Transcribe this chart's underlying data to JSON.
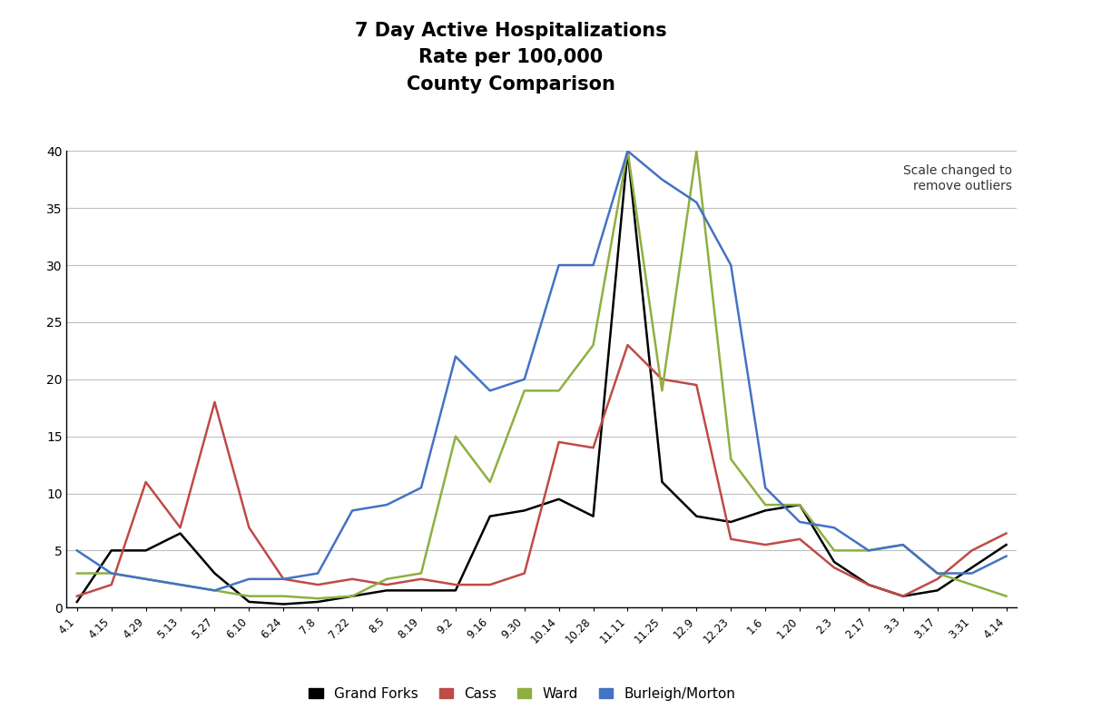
{
  "title": "7 Day Active Hospitalizations\nRate per 100,000\nCounty Comparison",
  "x_labels": [
    "4.1",
    "4.15",
    "4.29",
    "5.13",
    "5.27",
    "6.10",
    "6.24",
    "7.8",
    "7.22",
    "8.5",
    "8.19",
    "9.2",
    "9.16",
    "9.30",
    "10.14",
    "10.28",
    "11.11",
    "11.25",
    "12.9",
    "12.23",
    "1.6",
    "1.20",
    "2.3",
    "2.17",
    "3.3",
    "3.17",
    "3.31",
    "4.14"
  ],
  "ylim": [
    0,
    40
  ],
  "yticks": [
    0,
    5,
    10,
    15,
    20,
    25,
    30,
    35,
    40
  ],
  "annotation": "Scale changed to\nremove outliers",
  "grand_forks": [
    0.5,
    5.0,
    5.0,
    6.5,
    3.0,
    0.5,
    0.3,
    0.5,
    1.0,
    1.5,
    1.5,
    1.5,
    8.0,
    8.5,
    9.5,
    8.0,
    40.0,
    11.0,
    8.0,
    7.5,
    8.5,
    9.0,
    4.0,
    2.0,
    1.0,
    1.5,
    3.5,
    5.5
  ],
  "cass": [
    1.0,
    2.0,
    11.0,
    7.0,
    18.0,
    7.0,
    2.5,
    2.0,
    2.5,
    2.0,
    2.5,
    2.0,
    2.0,
    3.0,
    14.5,
    14.0,
    23.0,
    20.0,
    19.5,
    6.0,
    5.5,
    6.0,
    3.5,
    2.0,
    1.0,
    2.5,
    5.0,
    6.5
  ],
  "ward": [
    3.0,
    3.0,
    2.5,
    2.0,
    1.5,
    1.0,
    1.0,
    0.8,
    1.0,
    2.5,
    3.0,
    15.0,
    11.0,
    19.0,
    19.0,
    23.0,
    40.0,
    19.0,
    40.0,
    13.0,
    9.0,
    9.0,
    5.0,
    5.0,
    5.5,
    3.0,
    2.0,
    1.0
  ],
  "burleigh": [
    5.0,
    3.0,
    2.5,
    2.0,
    1.5,
    2.5,
    2.5,
    3.0,
    8.5,
    9.0,
    10.5,
    22.0,
    19.0,
    20.0,
    30.0,
    30.0,
    40.0,
    37.5,
    35.5,
    30.0,
    10.5,
    7.5,
    7.0,
    5.0,
    5.5,
    3.0,
    3.0,
    4.5
  ],
  "grand_forks_color": "#000000",
  "cass_color": "#be4b48",
  "ward_color": "#8db040",
  "burleigh_color": "#4472c4",
  "background_color": "#ffffff",
  "plot_bg_color": "#ffffff",
  "grid_color": "#bfbfbf",
  "linewidth": 1.8
}
